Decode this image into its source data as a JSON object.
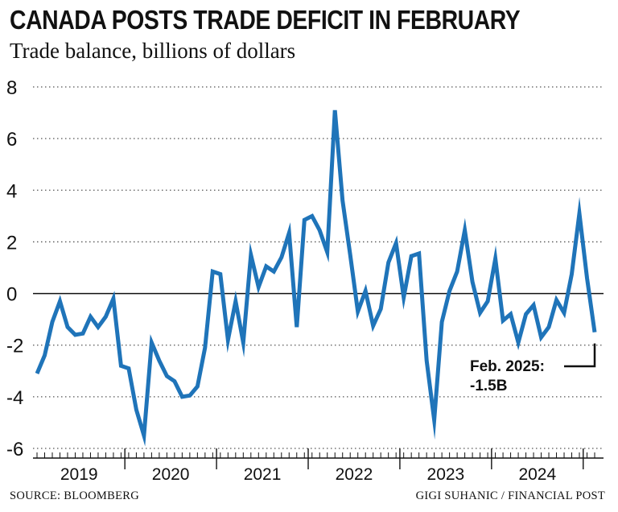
{
  "chart_data": {
    "type": "line",
    "title": "CANADA POSTS TRADE DEFICIT IN FEBRUARY",
    "subtitle": "Trade balance, billions of dollars",
    "ylim": [
      -6,
      8
    ],
    "yticks": [
      8,
      6,
      4,
      2,
      0,
      -2,
      -4,
      -6
    ],
    "ytick_labels": [
      "8",
      "6",
      "4",
      "2",
      "0",
      "-2",
      "-4",
      "-6"
    ],
    "grid": "dotted horizontal",
    "x_start": "2019-01",
    "x_end": "2025-02",
    "year_labels": [
      "2019",
      "2020",
      "2021",
      "2022",
      "2023",
      "2024"
    ],
    "series": [
      {
        "color": "#1f74b9",
        "x": [
          "2019-01",
          "2019-02",
          "2019-03",
          "2019-04",
          "2019-05",
          "2019-06",
          "2019-07",
          "2019-08",
          "2019-09",
          "2019-10",
          "2019-11",
          "2019-12",
          "2020-01",
          "2020-02",
          "2020-03",
          "2020-04",
          "2020-05",
          "2020-06",
          "2020-07",
          "2020-08",
          "2020-09",
          "2020-10",
          "2020-11",
          "2020-12",
          "2021-01",
          "2021-02",
          "2021-03",
          "2021-04",
          "2021-05",
          "2021-06",
          "2021-07",
          "2021-08",
          "2021-09",
          "2021-10",
          "2021-11",
          "2021-12",
          "2022-01",
          "2022-02",
          "2022-03",
          "2022-04",
          "2022-05",
          "2022-06",
          "2022-07",
          "2022-08",
          "2022-09",
          "2022-10",
          "2022-11",
          "2022-12",
          "2023-01",
          "2023-02",
          "2023-03",
          "2023-04",
          "2023-05",
          "2023-06",
          "2023-07",
          "2023-08",
          "2023-09",
          "2023-10",
          "2023-11",
          "2023-12",
          "2024-01",
          "2024-02",
          "2024-03",
          "2024-04",
          "2024-05",
          "2024-06",
          "2024-07",
          "2024-08",
          "2024-09",
          "2024-10",
          "2024-11",
          "2024-12",
          "2025-01",
          "2025-02"
        ],
        "values": [
          -3.1,
          -2.4,
          -1.1,
          -0.3,
          -1.3,
          -1.6,
          -1.55,
          -0.9,
          -1.3,
          -0.9,
          -0.2,
          -2.8,
          -2.9,
          -4.5,
          -5.5,
          -1.9,
          -2.6,
          -3.2,
          -3.4,
          -4.0,
          -3.95,
          -3.6,
          -2.1,
          0.85,
          0.75,
          -1.8,
          -0.3,
          -1.9,
          1.5,
          0.25,
          1.05,
          0.85,
          1.4,
          2.35,
          -1.3,
          2.85,
          3.0,
          2.45,
          1.6,
          7.1,
          3.6,
          1.5,
          -0.7,
          0.1,
          -1.25,
          -0.6,
          1.2,
          1.95,
          -0.15,
          1.45,
          1.55,
          -2.6,
          -4.9,
          -1.1,
          0.1,
          0.85,
          2.45,
          0.45,
          -0.75,
          -0.3,
          1.35,
          -1.05,
          -0.8,
          -1.9,
          -0.8,
          -0.45,
          -1.7,
          -1.3,
          -0.25,
          -0.75,
          0.75,
          3.1,
          0.6,
          -1.5
        ]
      }
    ],
    "annotation": {
      "x": "2025-02",
      "value": -1.5,
      "line1": "Feb. 2025:",
      "line2": "-1.5B"
    }
  },
  "footer": {
    "source": "SOURCE:  BLOOMBERG",
    "credit": "GIGI SUHANIC / FINANCIAL POST"
  }
}
